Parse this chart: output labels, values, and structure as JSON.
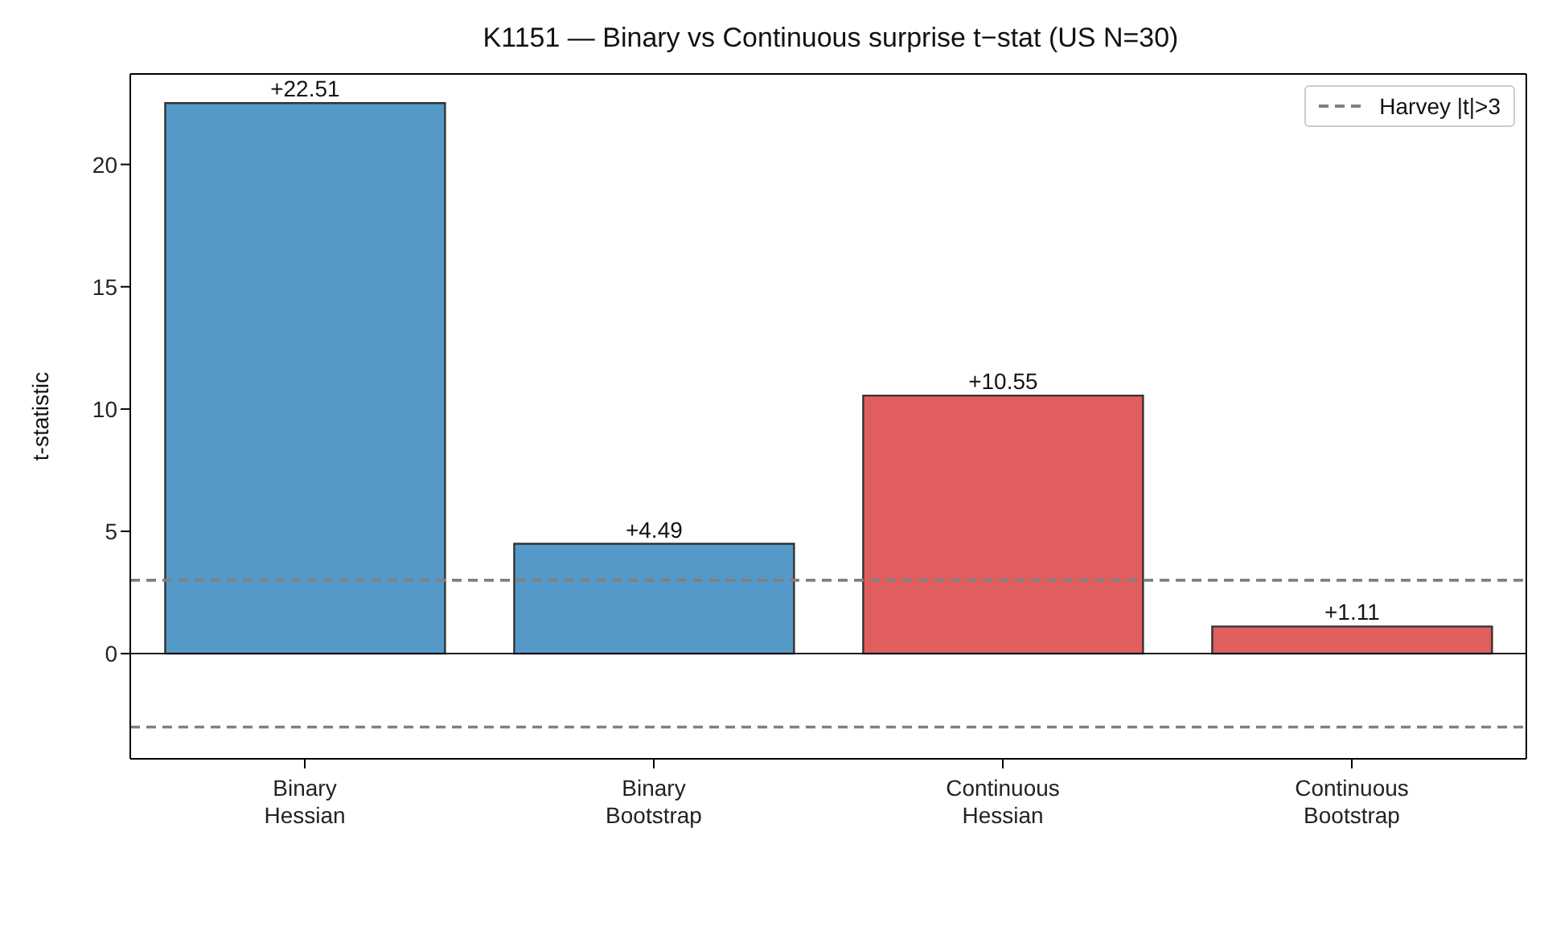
{
  "chart_data": {
    "type": "bar",
    "title": "K1151 — Binary vs Continuous surprise t−stat (US N=30)",
    "ylabel": "t-statistic",
    "categories": [
      "Binary\nHessian",
      "Binary\nBootstrap",
      "Continuous\nHessian",
      "Continuous\nBootstrap"
    ],
    "values": [
      22.51,
      4.49,
      10.55,
      1.11
    ],
    "colors": [
      "#5599c8",
      "#5599c8",
      "#e05e5e",
      "#e05e5e"
    ],
    "value_labels": [
      "+22.51",
      "+4.49",
      "+10.55",
      "+1.11"
    ],
    "ylim": [
      -4.3,
      23.7
    ],
    "yticks": [
      0,
      5,
      10,
      15,
      20
    ],
    "ref_lines": [
      {
        "axis": "y",
        "value": 3,
        "label": "Harvey |t|>3",
        "color": "#808080",
        "line_style": "dashed"
      },
      {
        "axis": "y",
        "value": -3,
        "label": null,
        "color": "#808080",
        "line_style": "dashed"
      },
      {
        "axis": "y",
        "value": 0,
        "label": null,
        "color": "#000000",
        "line_style": "solid"
      }
    ],
    "legend": "top right"
  }
}
